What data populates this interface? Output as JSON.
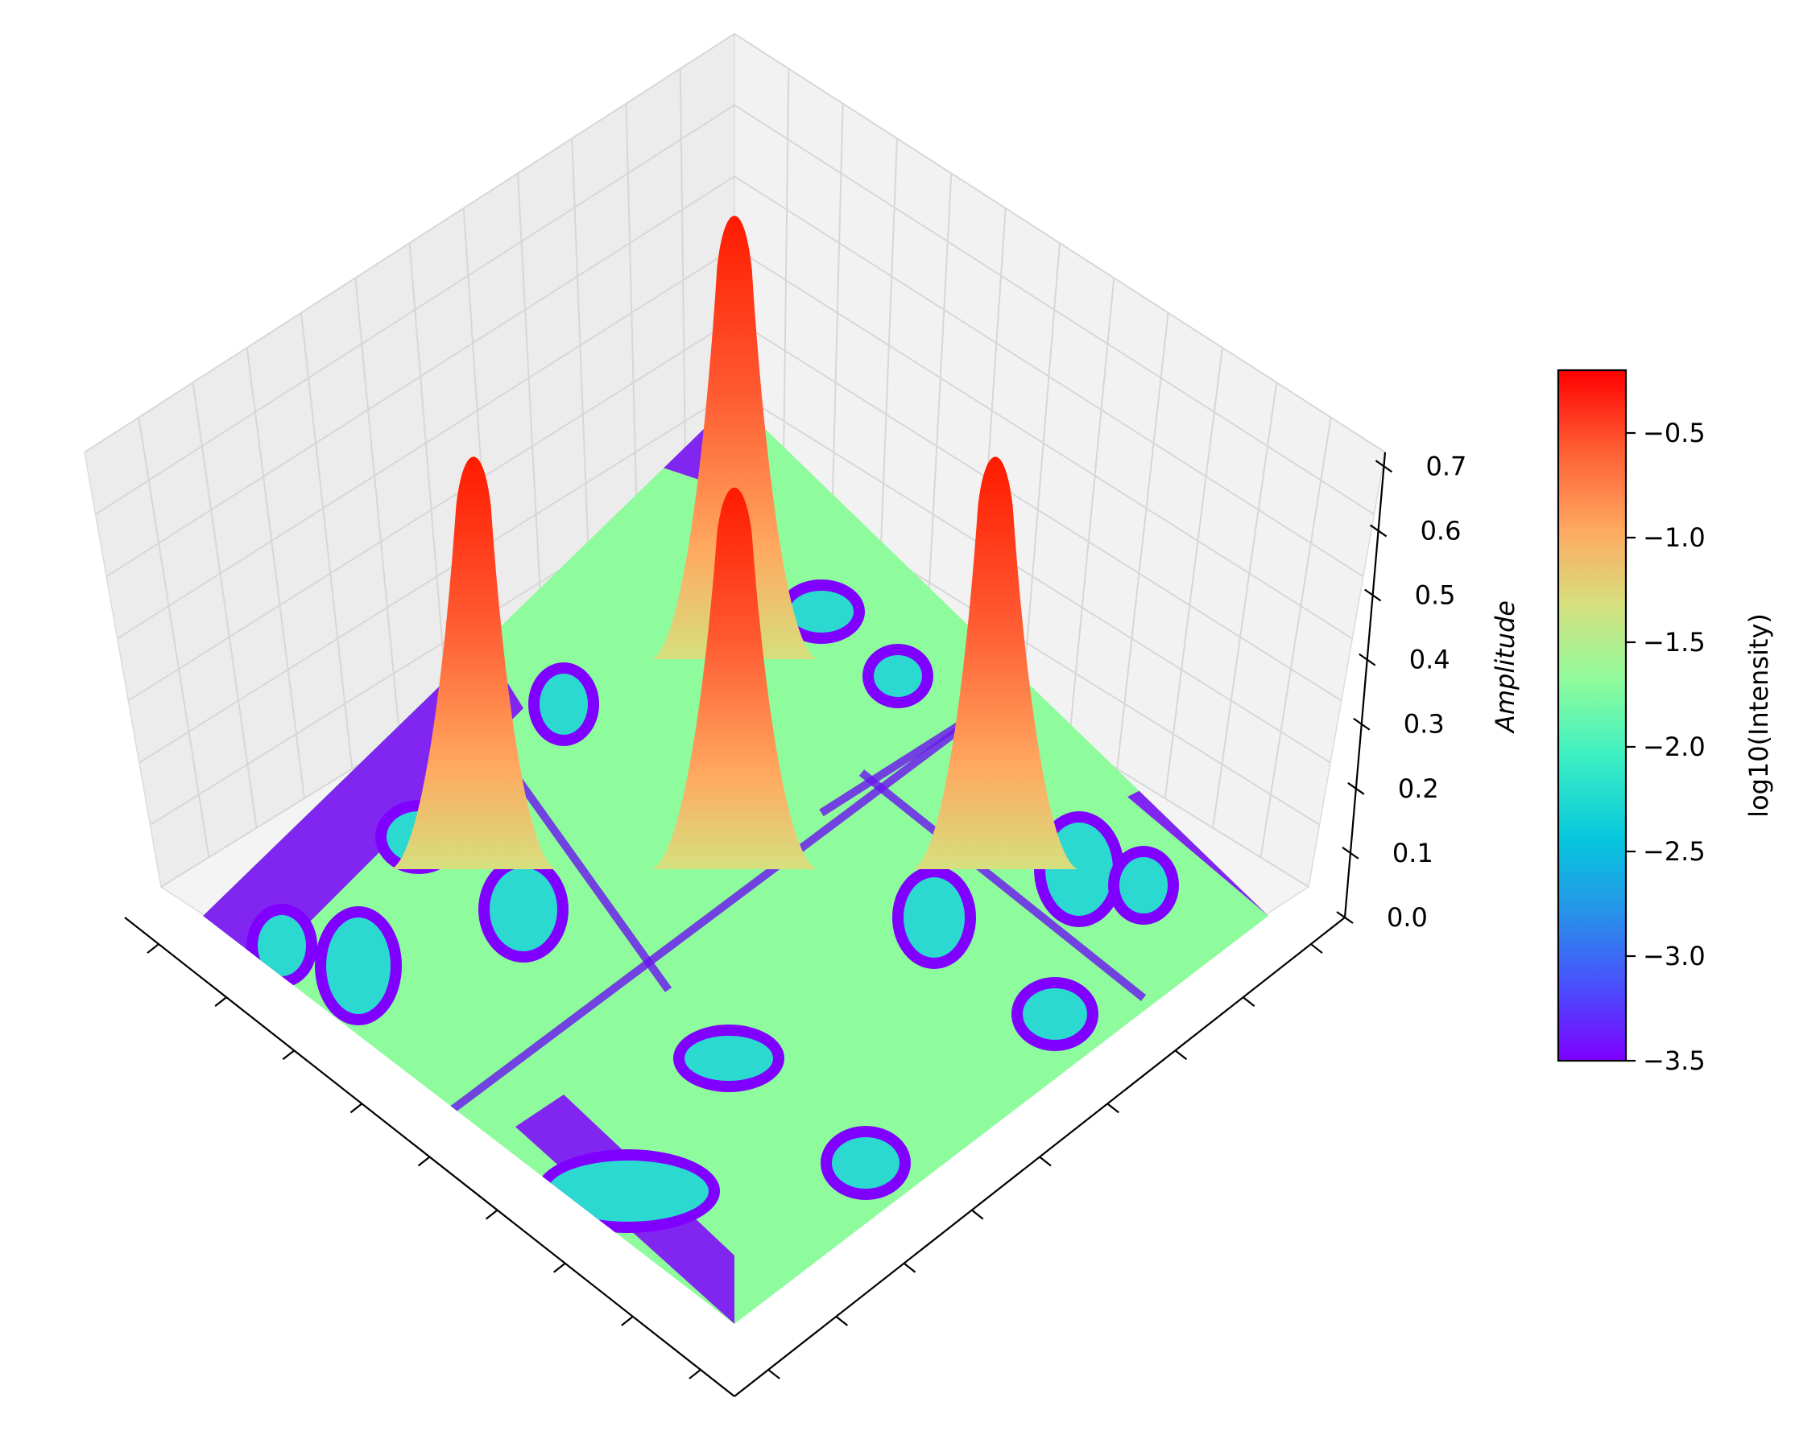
{
  "chart_data": {
    "type": "surface3d",
    "title": "",
    "xlabel": "",
    "ylabel": "",
    "zlabel": "Amplitude",
    "zlim": [
      0.0,
      0.7
    ],
    "z_ticks": [
      "0.0",
      "0.1",
      "0.2",
      "0.3",
      "0.4",
      "0.5",
      "0.6",
      "0.7"
    ],
    "grid": true,
    "peaks": [
      {
        "x": 0.0,
        "y": 0.0,
        "amplitude": 0.6
      },
      {
        "x": 0.45,
        "y": -0.45,
        "amplitude": 0.65
      },
      {
        "x": -0.45,
        "y": 0.45,
        "amplitude": 0.65
      },
      {
        "x": -0.45,
        "y": -0.45,
        "amplitude": 0.7
      }
    ],
    "colorbar": {
      "label": "log10(Intensity)",
      "colormap": "rainbow",
      "range": [
        -3.5,
        -0.2
      ],
      "ticks": [
        "−0.5",
        "−1.0",
        "−1.5",
        "−2.0",
        "−2.5",
        "−3.0",
        "−3.5"
      ],
      "tick_values": [
        -0.5,
        -1.0,
        -1.5,
        -2.0,
        -2.5,
        -3.0,
        -3.5
      ]
    }
  }
}
